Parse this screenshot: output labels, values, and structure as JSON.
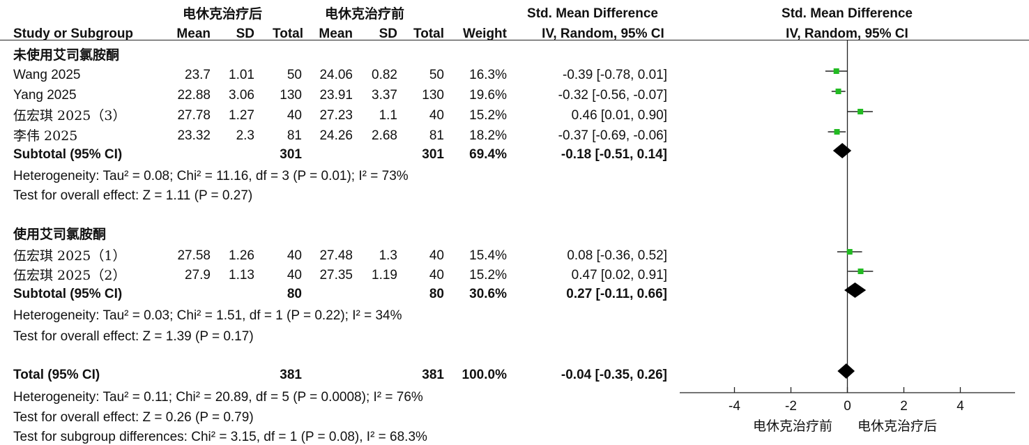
{
  "header": {
    "group_exp": "电休克治疗后",
    "group_ctl": "电休克治疗前",
    "col_study": "Study or Subgroup",
    "col_mean": "Mean",
    "col_sd": "SD",
    "col_total": "Total",
    "col_weight": "Weight",
    "smd_title": "Std. Mean Difference",
    "smd_method": "IV, Random, 95% CI",
    "plot_title": "Std. Mean Difference",
    "plot_method": "IV, Random, 95% CI"
  },
  "subgroups": [
    {
      "title": "未使用艾司氯胺酮",
      "studies": [
        {
          "name": "Wang 2025",
          "m1": "23.7",
          "sd1": "1.01",
          "n1": "50",
          "m2": "24.06",
          "sd2": "0.82",
          "n2": "50",
          "weight": "16.3%",
          "ci": "-0.39 [-0.78, 0.01]"
        },
        {
          "name": "Yang 2025",
          "m1": "22.88",
          "sd1": "3.06",
          "n1": "130",
          "m2": "23.91",
          "sd2": "3.37",
          "n2": "130",
          "weight": "19.6%",
          "ci": "-0.32 [-0.56, -0.07]"
        },
        {
          "name": "伍宏琪 2025（3）",
          "m1": "27.78",
          "sd1": "1.27",
          "n1": "40",
          "m2": "27.23",
          "sd2": "1.1",
          "n2": "40",
          "weight": "15.2%",
          "ci": "0.46 [0.01, 0.90]"
        },
        {
          "name": "李伟 2025",
          "m1": "23.32",
          "sd1": "2.3",
          "n1": "81",
          "m2": "24.26",
          "sd2": "2.68",
          "n2": "81",
          "weight": "18.2%",
          "ci": "-0.37 [-0.69, -0.06]"
        }
      ],
      "subtotal": {
        "label": "Subtotal (95% CI)",
        "n1": "301",
        "n2": "301",
        "weight": "69.4%",
        "ci": "-0.18 [-0.51, 0.14]"
      },
      "heterogeneity": "Heterogeneity: Tau² = 0.08; Chi² = 11.16, df = 3 (P = 0.01); I² = 73%",
      "overall": "Test for overall effect: Z = 1.11 (P = 0.27)"
    },
    {
      "title": "使用艾司氯胺酮",
      "studies": [
        {
          "name": "伍宏琪 2025（1）",
          "m1": "27.58",
          "sd1": "1.26",
          "n1": "40",
          "m2": "27.48",
          "sd2": "1.3",
          "n2": "40",
          "weight": "15.4%",
          "ci": "0.08 [-0.36, 0.52]"
        },
        {
          "name": "伍宏琪 2025（2）",
          "m1": "27.9",
          "sd1": "1.13",
          "n1": "40",
          "m2": "27.35",
          "sd2": "1.19",
          "n2": "40",
          "weight": "15.2%",
          "ci": "0.47 [0.02, 0.91]"
        }
      ],
      "subtotal": {
        "label": "Subtotal (95% CI)",
        "n1": "80",
        "n2": "80",
        "weight": "30.6%",
        "ci": "0.27 [-0.11, 0.66]"
      },
      "heterogeneity": "Heterogeneity: Tau² = 0.03; Chi² = 1.51, df = 1 (P = 0.22); I² = 34%",
      "overall": "Test for overall effect: Z = 1.39 (P = 0.17)"
    }
  ],
  "total": {
    "label": "Total (95% CI)",
    "n1": "381",
    "n2": "381",
    "weight": "100.0%",
    "ci": "-0.04 [-0.35, 0.26]",
    "heterogeneity": "Heterogeneity: Tau² = 0.11; Chi² = 20.89, df = 5 (P = 0.0008); I² = 76%",
    "overall": "Test for overall effect: Z = 0.26 (P = 0.79)",
    "subgroup_diff": "Test for subgroup differences: Chi² = 3.15, df = 1 (P = 0.08), I² = 68.3%"
  },
  "axis": {
    "favours_left": "电休克治疗前",
    "favours_right": "电休克治疗后",
    "ticks": [
      -4,
      -2,
      0,
      2,
      4
    ],
    "xlim": [
      -6,
      6
    ]
  },
  "chart_data": {
    "type": "scatter",
    "title": "Std. Mean Difference",
    "xlabel": "",
    "xlim": [
      -6,
      6
    ],
    "marker_color": "#22bb22",
    "diamond_color": "#000000",
    "studies": [
      {
        "name": "Wang 2025",
        "est": -0.39,
        "lo": -0.78,
        "hi": 0.01
      },
      {
        "name": "Yang 2025",
        "est": -0.32,
        "lo": -0.56,
        "hi": -0.07
      },
      {
        "name": "伍宏琪 2025（3）",
        "est": 0.46,
        "lo": 0.01,
        "hi": 0.9
      },
      {
        "name": "李伟 2025",
        "est": -0.37,
        "lo": -0.69,
        "hi": -0.06
      },
      {
        "name": "伍宏琪 2025（1）",
        "est": 0.08,
        "lo": -0.36,
        "hi": 0.52
      },
      {
        "name": "伍宏琪 2025（2）",
        "est": 0.47,
        "lo": 0.02,
        "hi": 0.91
      }
    ],
    "diamonds": [
      {
        "name": "Subtotal 未使用艾司氯胺酮",
        "est": -0.18,
        "lo": -0.51,
        "hi": 0.14
      },
      {
        "name": "Subtotal 使用艾司氯胺酮",
        "est": 0.27,
        "lo": -0.11,
        "hi": 0.66
      },
      {
        "name": "Total",
        "est": -0.04,
        "lo": -0.35,
        "hi": 0.26
      }
    ]
  }
}
